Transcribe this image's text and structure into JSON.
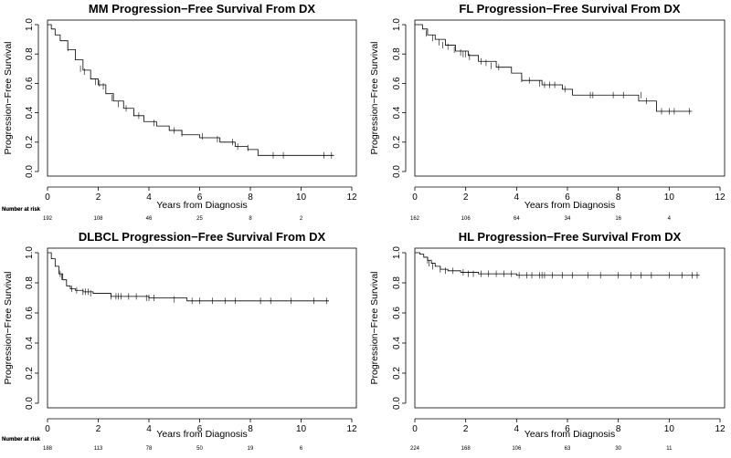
{
  "common": {
    "xlabel": "Years from Diagnosis",
    "ylabel": "Progression−Free Survival",
    "risk_header": "Number at risk",
    "x_ticks": [
      0,
      2,
      4,
      6,
      8,
      10,
      12
    ],
    "y_ticks": [
      "0.0",
      "0.2",
      "0.4",
      "0.6",
      "0.8",
      "1.0"
    ]
  },
  "chart_data": [
    {
      "type": "line",
      "title": "MM Progression−Free Survival From DX",
      "xlabel": "Years from Diagnosis",
      "ylabel": "Progression−Free Survival",
      "xlim": [
        0,
        12
      ],
      "ylim": [
        0,
        1
      ],
      "series": [
        {
          "x": [
            0,
            0.15,
            0.3,
            0.5,
            0.8,
            1.1,
            1.4,
            1.7,
            2.0,
            2.3,
            2.6,
            3.0,
            3.4,
            3.8,
            4.3,
            4.8,
            5.3,
            6.0,
            6.8,
            7.4,
            7.9,
            8.3,
            11.3
          ],
          "y": [
            1.0,
            0.97,
            0.93,
            0.89,
            0.83,
            0.76,
            0.69,
            0.63,
            0.59,
            0.53,
            0.48,
            0.43,
            0.38,
            0.34,
            0.31,
            0.28,
            0.25,
            0.23,
            0.2,
            0.17,
            0.15,
            0.11,
            0.11
          ]
        }
      ],
      "censored": [
        [
          0.8,
          0.84
        ],
        [
          1.3,
          0.7
        ],
        [
          1.45,
          0.68
        ],
        [
          1.9,
          0.61
        ],
        [
          2.05,
          0.6
        ],
        [
          2.2,
          0.58
        ],
        [
          2.55,
          0.5
        ],
        [
          2.8,
          0.46
        ],
        [
          3.1,
          0.43
        ],
        [
          3.4,
          0.4
        ],
        [
          3.6,
          0.38
        ],
        [
          4.2,
          0.33
        ],
        [
          5.0,
          0.28
        ],
        [
          5.3,
          0.26
        ],
        [
          6.1,
          0.24
        ],
        [
          6.7,
          0.22
        ],
        [
          7.3,
          0.2
        ],
        [
          7.5,
          0.17
        ],
        [
          7.9,
          0.16
        ],
        [
          8.9,
          0.11
        ],
        [
          9.3,
          0.11
        ],
        [
          10.9,
          0.11
        ],
        [
          11.2,
          0.11
        ]
      ],
      "number_at_risk": {
        "x": [
          0,
          2,
          4,
          6,
          8,
          10
        ],
        "values": [
          "192",
          "108",
          "46",
          "25",
          "8",
          "2"
        ]
      }
    },
    {
      "type": "line",
      "title": "FL Progression−Free Survival From DX",
      "xlabel": "Years from Diagnosis",
      "ylabel": "Progression−Free Survival",
      "xlim": [
        0,
        12
      ],
      "ylim": [
        0,
        1
      ],
      "series": [
        {
          "x": [
            0,
            0.3,
            0.5,
            0.8,
            1.2,
            1.6,
            2.1,
            2.5,
            3.2,
            3.8,
            4.2,
            5.0,
            5.8,
            6.2,
            8.8,
            9.5,
            10.9
          ],
          "y": [
            1.0,
            0.97,
            0.93,
            0.9,
            0.86,
            0.82,
            0.79,
            0.75,
            0.71,
            0.67,
            0.62,
            0.59,
            0.56,
            0.52,
            0.48,
            0.41,
            0.41
          ]
        }
      ],
      "censored": [
        [
          0.45,
          0.94
        ],
        [
          0.7,
          0.91
        ],
        [
          0.95,
          0.88
        ],
        [
          1.1,
          0.86
        ],
        [
          1.3,
          0.85
        ],
        [
          1.55,
          0.83
        ],
        [
          1.8,
          0.81
        ],
        [
          1.9,
          0.8
        ],
        [
          2.0,
          0.8
        ],
        [
          2.15,
          0.78
        ],
        [
          2.6,
          0.75
        ],
        [
          2.8,
          0.74
        ],
        [
          3.0,
          0.72
        ],
        [
          3.3,
          0.71
        ],
        [
          4.2,
          0.63
        ],
        [
          4.5,
          0.62
        ],
        [
          4.9,
          0.6
        ],
        [
          5.1,
          0.59
        ],
        [
          5.3,
          0.59
        ],
        [
          5.5,
          0.59
        ],
        [
          5.9,
          0.56
        ],
        [
          6.9,
          0.52
        ],
        [
          7.0,
          0.52
        ],
        [
          7.8,
          0.52
        ],
        [
          8.2,
          0.52
        ],
        [
          8.9,
          0.52
        ],
        [
          9.1,
          0.48
        ],
        [
          9.7,
          0.41
        ],
        [
          10.0,
          0.41
        ],
        [
          10.2,
          0.41
        ],
        [
          10.8,
          0.41
        ]
      ],
      "number_at_risk": {
        "x": [
          0,
          2,
          4,
          6,
          8,
          10
        ],
        "values": [
          "162",
          "106",
          "64",
          "34",
          "16",
          "4"
        ]
      }
    },
    {
      "type": "line",
      "title": "DLBCL Progression−Free Survival From DX",
      "xlabel": "Years from Diagnosis",
      "ylabel": "Progression−Free Survival",
      "xlim": [
        0,
        12
      ],
      "ylim": [
        0,
        1
      ],
      "series": [
        {
          "x": [
            0,
            0.15,
            0.3,
            0.45,
            0.6,
            0.75,
            0.9,
            1.1,
            1.4,
            1.8,
            2.5,
            4.0,
            5.5,
            11.1
          ],
          "y": [
            1.0,
            0.96,
            0.91,
            0.86,
            0.82,
            0.78,
            0.76,
            0.75,
            0.74,
            0.73,
            0.71,
            0.7,
            0.68,
            0.68
          ]
        }
      ],
      "censored": [
        [
          0.5,
          0.86
        ],
        [
          0.55,
          0.84
        ],
        [
          0.95,
          0.76
        ],
        [
          1.15,
          0.75
        ],
        [
          1.4,
          0.74
        ],
        [
          1.5,
          0.74
        ],
        [
          1.6,
          0.74
        ],
        [
          1.7,
          0.73
        ],
        [
          2.5,
          0.71
        ],
        [
          2.7,
          0.71
        ],
        [
          2.8,
          0.71
        ],
        [
          2.9,
          0.71
        ],
        [
          3.2,
          0.71
        ],
        [
          3.5,
          0.71
        ],
        [
          3.9,
          0.7
        ],
        [
          4.0,
          0.7
        ],
        [
          4.2,
          0.7
        ],
        [
          5.0,
          0.69
        ],
        [
          5.7,
          0.68
        ],
        [
          6.0,
          0.68
        ],
        [
          6.5,
          0.68
        ],
        [
          7.0,
          0.68
        ],
        [
          7.4,
          0.68
        ],
        [
          8.4,
          0.68
        ],
        [
          8.8,
          0.68
        ],
        [
          9.6,
          0.68
        ],
        [
          10.5,
          0.68
        ],
        [
          11.0,
          0.68
        ]
      ],
      "number_at_risk": {
        "x": [
          0,
          2,
          4,
          6,
          8,
          10
        ],
        "values": [
          "188",
          "113",
          "78",
          "50",
          "19",
          "6"
        ]
      }
    },
    {
      "type": "line",
      "title": "HL Progression−Free Survival From DX",
      "xlabel": "Years from Diagnosis",
      "ylabel": "Progression−Free Survival",
      "xlim": [
        0,
        12
      ],
      "ylim": [
        0,
        1
      ],
      "series": [
        {
          "x": [
            0,
            0.2,
            0.35,
            0.5,
            0.65,
            0.8,
            1.0,
            1.3,
            1.8,
            2.5,
            4.0,
            11.2
          ],
          "y": [
            1.0,
            0.99,
            0.97,
            0.95,
            0.93,
            0.91,
            0.89,
            0.88,
            0.87,
            0.86,
            0.85,
            0.85
          ]
        }
      ],
      "censored": [
        [
          0.5,
          0.95
        ],
        [
          0.55,
          0.93
        ],
        [
          0.7,
          0.91
        ],
        [
          1.0,
          0.89
        ],
        [
          1.2,
          0.88
        ],
        [
          1.5,
          0.88
        ],
        [
          1.9,
          0.87
        ],
        [
          2.1,
          0.86
        ],
        [
          2.3,
          0.86
        ],
        [
          2.6,
          0.86
        ],
        [
          2.9,
          0.86
        ],
        [
          3.2,
          0.86
        ],
        [
          3.5,
          0.86
        ],
        [
          3.8,
          0.86
        ],
        [
          4.1,
          0.85
        ],
        [
          4.4,
          0.85
        ],
        [
          4.6,
          0.85
        ],
        [
          4.9,
          0.85
        ],
        [
          5.0,
          0.85
        ],
        [
          5.1,
          0.85
        ],
        [
          5.4,
          0.85
        ],
        [
          5.8,
          0.85
        ],
        [
          6.2,
          0.85
        ],
        [
          6.8,
          0.85
        ],
        [
          7.3,
          0.85
        ],
        [
          8.0,
          0.85
        ],
        [
          8.5,
          0.85
        ],
        [
          8.9,
          0.85
        ],
        [
          9.3,
          0.85
        ],
        [
          10.0,
          0.85
        ],
        [
          10.5,
          0.85
        ],
        [
          10.9,
          0.85
        ],
        [
          11.1,
          0.85
        ]
      ],
      "number_at_risk": {
        "x": [
          0,
          2,
          4,
          6,
          8,
          10
        ],
        "values": [
          "224",
          "168",
          "106",
          "63",
          "30",
          "11"
        ]
      }
    }
  ]
}
